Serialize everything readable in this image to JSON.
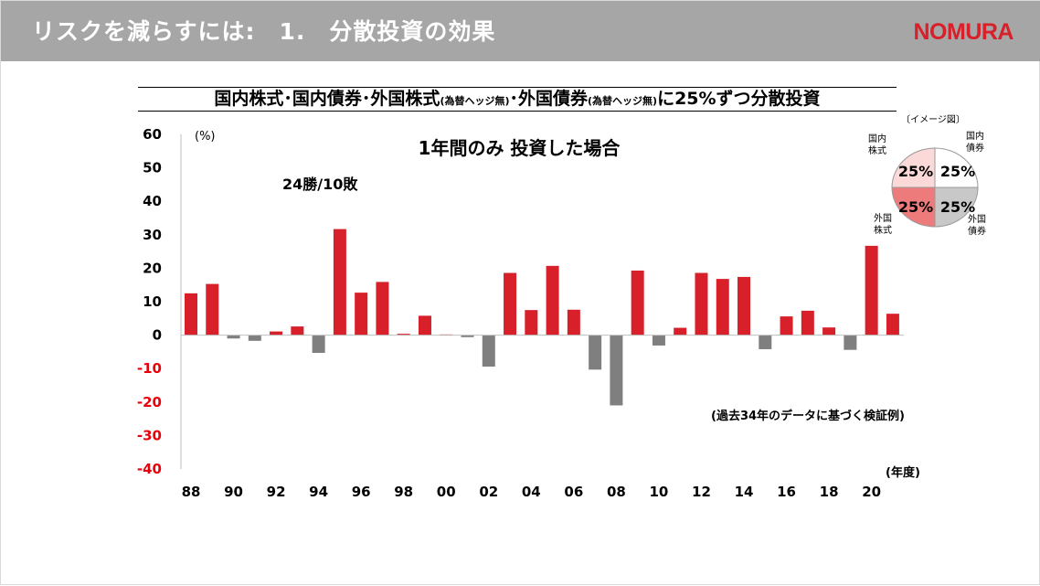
{
  "header": {
    "title": "リスクを減らすには:　1.　分散投資の効果",
    "logo": "NOMURA",
    "bg_color": "#a6a6a6",
    "logo_color": "#d8202a"
  },
  "subtitle": {
    "part1": "国内株式･国内債券･外国株式",
    "note1": "(為替ヘッジ無)",
    "part2": "･外国債券",
    "note2": "(為替ヘッジ無)",
    "part3": "に25%ずつ分散投資"
  },
  "chart_data": {
    "type": "bar",
    "title": "1年間のみ 投資した場合",
    "record": "24勝/10敗",
    "yunit": "(%)",
    "xunit": "(年度)",
    "source_note": "(過去34年のデータに基づく検証例)",
    "ylim": [
      -40,
      60
    ],
    "yticks": [
      "60",
      "50",
      "40",
      "30",
      "20",
      "10",
      "0",
      "-10",
      "-20",
      "-30",
      "-40"
    ],
    "ytick_values": [
      60,
      50,
      40,
      30,
      20,
      10,
      0,
      -10,
      -20,
      -30,
      -40
    ],
    "categories": [
      "1988",
      "1989",
      "1990",
      "1991",
      "1992",
      "1993",
      "1994",
      "1995",
      "1996",
      "1997",
      "1998",
      "1999",
      "2000",
      "2001",
      "2002",
      "2003",
      "2004",
      "2005",
      "2006",
      "2007",
      "2008",
      "2009",
      "2010",
      "2011",
      "2012",
      "2013",
      "2014",
      "2015",
      "2016",
      "2017",
      "2018",
      "2019",
      "2020",
      "2021"
    ],
    "xtick_labels": [
      "88",
      "",
      "90",
      "",
      "92",
      "",
      "94",
      "",
      "96",
      "",
      "98",
      "",
      "00",
      "",
      "02",
      "",
      "04",
      "",
      "06",
      "",
      "08",
      "",
      "10",
      "",
      "12",
      "",
      "14",
      "",
      "16",
      "",
      "18",
      "",
      "20",
      ""
    ],
    "values": [
      12.5,
      15.3,
      -1.0,
      -1.7,
      1.1,
      2.6,
      -5.3,
      31.7,
      12.7,
      15.9,
      0.4,
      5.8,
      0.2,
      -0.6,
      -9.4,
      18.6,
      7.5,
      20.7,
      7.6,
      -10.3,
      -21.0,
      19.3,
      -3.1,
      2.2,
      18.6,
      16.8,
      17.4,
      -4.2,
      5.6,
      7.3,
      2.3,
      -4.4,
      26.7,
      6.4
    ],
    "positive_color": "#d8202a",
    "negative_color": "#7f7f7f",
    "negative_tick_color": "#e8000b",
    "grid": false
  },
  "inset": {
    "title": "〔イメージ図〕",
    "quadrants": [
      {
        "label": "国内\n株式",
        "value": "25%",
        "color": "#fbd9d9"
      },
      {
        "label": "国内\n債券",
        "value": "25%",
        "color": "#ffffff"
      },
      {
        "label": "外国\n株式",
        "value": "25%",
        "color": "#ee7b7b"
      },
      {
        "label": "外国\n債券",
        "value": "25%",
        "color": "#c8c8c8"
      }
    ]
  }
}
